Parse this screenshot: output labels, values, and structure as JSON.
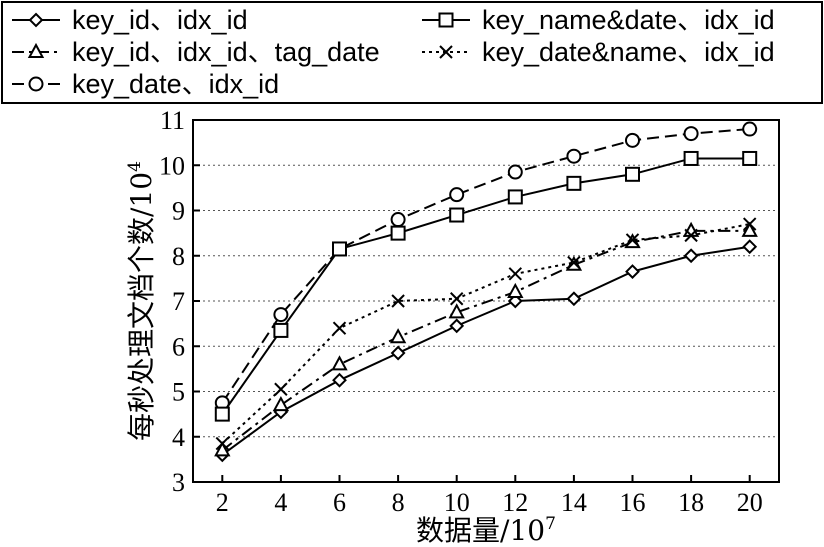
{
  "chart_data": {
    "type": "line",
    "xlabel": "数据量/10",
    "xlabel_exp": "7",
    "ylabel": "每秒处理文档个数/10",
    "ylabel_exp": "4",
    "x": [
      2,
      4,
      6,
      8,
      10,
      12,
      14,
      16,
      18,
      20
    ],
    "xlim": [
      1,
      21
    ],
    "ylim": [
      3,
      11
    ],
    "xticks": [
      "2",
      "4",
      "6",
      "8",
      "10",
      "12",
      "14",
      "16",
      "18",
      "20"
    ],
    "yticks": [
      "3",
      "4",
      "5",
      "6",
      "7",
      "8",
      "9",
      "10",
      "11"
    ],
    "grid": "horizontal",
    "legend_position": "top",
    "series": [
      {
        "name": "key_id、idx_id",
        "marker": "diamond",
        "line": "solid",
        "values": [
          3.6,
          4.55,
          5.25,
          5.85,
          6.45,
          7.0,
          7.05,
          7.65,
          8.0,
          8.2
        ]
      },
      {
        "name": "key_id、idx_id、tag_date",
        "marker": "triangle",
        "line": "dashdot",
        "values": [
          3.7,
          4.7,
          5.6,
          6.2,
          6.75,
          7.2,
          7.8,
          8.3,
          8.55,
          8.55
        ]
      },
      {
        "name": "key_date、idx_id",
        "marker": "circle",
        "line": "dashed",
        "values": [
          4.75,
          6.7,
          8.15,
          8.8,
          9.35,
          9.85,
          10.2,
          10.55,
          10.7,
          10.8
        ]
      },
      {
        "name": "key_name&date、idx_id",
        "marker": "square",
        "line": "solid",
        "values": [
          4.5,
          6.35,
          8.15,
          8.5,
          8.9,
          9.3,
          9.6,
          9.8,
          10.15,
          10.15
        ]
      },
      {
        "name": "key_date&name、idx_id",
        "marker": "x",
        "line": "dotted",
        "values": [
          3.85,
          5.05,
          6.4,
          7.0,
          7.05,
          7.6,
          7.85,
          8.35,
          8.45,
          8.7
        ]
      }
    ]
  }
}
